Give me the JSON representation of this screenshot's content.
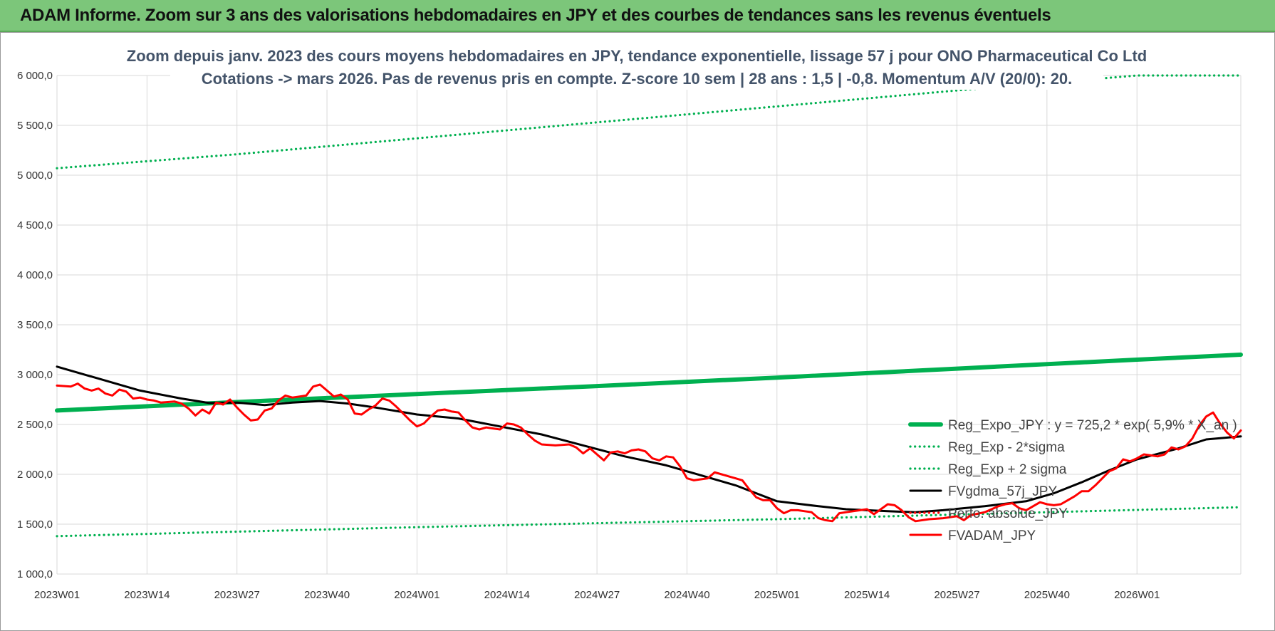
{
  "header": {
    "title": "ADAM Informe. Zoom sur 3 ans des valorisations hebdomadaires en JPY et des courbes de tendances sans les revenus éventuels"
  },
  "colors": {
    "header_bg": "#7cc67a",
    "trend": "#00b050",
    "price": "#ff0000",
    "gdma": "#000000",
    "grid": "#d9d9d9",
    "title": "#44546a"
  },
  "chart_data": {
    "type": "line",
    "title_line1": "Zoom depuis janv. 2023 des cours moyens hebdomadaires en JPY, tendance exponentielle, lissage 57 j pour ONO Pharmaceutical Co Ltd",
    "title_line2": "Cotations -> mars 2026. Pas de revenus pris en compte. Z-score 10 sem | 28 ans : 1,5 | -0,8. Momentum A/V (20/0): 20.",
    "xlabel": "",
    "ylabel": "",
    "ylim": [
      1000,
      6000
    ],
    "y_ticks": [
      "1 000,0",
      "1 500,0",
      "2 000,0",
      "2 500,0",
      "3 000,0",
      "3 500,0",
      "4 000,0",
      "4 500,0",
      "5 000,0",
      "5 500,0",
      "6 000,0"
    ],
    "x_ticks": [
      "2023W01",
      "2023W14",
      "2023W27",
      "2023W40",
      "2024W01",
      "2024W14",
      "2024W27",
      "2024W40",
      "2025W01",
      "2025W14",
      "2025W27",
      "2025W40",
      "2026W01"
    ],
    "x_tick_weeks": [
      0,
      13,
      26,
      39,
      52,
      65,
      78,
      91,
      104,
      117,
      130,
      143,
      156
    ],
    "x_range_weeks": [
      0,
      171
    ],
    "legend_position": "bottom-right",
    "series": [
      {
        "name": "Reg_Expo_JPY : y = 725,2 * exp( 5,9% * X_an )",
        "style": "thick",
        "color": "#00b050",
        "points": [
          [
            0,
            2640
          ],
          [
            26,
            2725
          ],
          [
            52,
            2805
          ],
          [
            78,
            2885
          ],
          [
            104,
            2970
          ],
          [
            130,
            3060
          ],
          [
            156,
            3150
          ],
          [
            171,
            3200
          ]
        ]
      },
      {
        "name": "Reg_Exp - 2*sigma",
        "style": "dotted",
        "color": "#00b050",
        "points": [
          [
            0,
            1380
          ],
          [
            52,
            1470
          ],
          [
            104,
            1550
          ],
          [
            171,
            1670
          ]
        ]
      },
      {
        "name": "Reg_Exp + 2 sigma",
        "style": "dotted",
        "color": "#00b050",
        "points": [
          [
            0,
            5070
          ],
          [
            26,
            5210
          ],
          [
            52,
            5370
          ],
          [
            78,
            5530
          ],
          [
            104,
            5690
          ],
          [
            130,
            5850
          ],
          [
            156,
            6000
          ],
          [
            171,
            6000
          ]
        ]
      },
      {
        "name": "FVgdma_57j_JPY",
        "style": "solid",
        "color": "#000000",
        "points": [
          [
            0,
            3080
          ],
          [
            6,
            2960
          ],
          [
            12,
            2840
          ],
          [
            18,
            2760
          ],
          [
            22,
            2715
          ],
          [
            26,
            2720
          ],
          [
            30,
            2695
          ],
          [
            34,
            2720
          ],
          [
            38,
            2735
          ],
          [
            42,
            2710
          ],
          [
            46,
            2670
          ],
          [
            52,
            2600
          ],
          [
            58,
            2560
          ],
          [
            64,
            2480
          ],
          [
            70,
            2400
          ],
          [
            76,
            2290
          ],
          [
            82,
            2180
          ],
          [
            88,
            2090
          ],
          [
            92,
            2010
          ],
          [
            98,
            1890
          ],
          [
            104,
            1730
          ],
          [
            110,
            1680
          ],
          [
            114,
            1650
          ],
          [
            120,
            1630
          ],
          [
            124,
            1620
          ],
          [
            128,
            1640
          ],
          [
            134,
            1680
          ],
          [
            140,
            1730
          ],
          [
            144,
            1810
          ],
          [
            148,
            1920
          ],
          [
            152,
            2040
          ],
          [
            156,
            2150
          ],
          [
            162,
            2260
          ],
          [
            166,
            2350
          ],
          [
            171,
            2380
          ]
        ]
      },
      {
        "name": "Perfo. absolue_JPY",
        "style": "dotted",
        "color": "#ff0000",
        "points": []
      },
      {
        "name": "FVADAM_JPY",
        "style": "solid",
        "color": "#ff0000",
        "points": [
          [
            0,
            2890
          ],
          [
            2,
            2880
          ],
          [
            3,
            2910
          ],
          [
            4,
            2860
          ],
          [
            5,
            2840
          ],
          [
            6,
            2860
          ],
          [
            7,
            2810
          ],
          [
            8,
            2790
          ],
          [
            9,
            2850
          ],
          [
            10,
            2830
          ],
          [
            11,
            2760
          ],
          [
            12,
            2770
          ],
          [
            13,
            2750
          ],
          [
            14,
            2740
          ],
          [
            15,
            2720
          ],
          [
            17,
            2730
          ],
          [
            18,
            2710
          ],
          [
            19,
            2660
          ],
          [
            20,
            2590
          ],
          [
            21,
            2650
          ],
          [
            22,
            2610
          ],
          [
            23,
            2720
          ],
          [
            24,
            2700
          ],
          [
            25,
            2750
          ],
          [
            26,
            2670
          ],
          [
            27,
            2600
          ],
          [
            28,
            2540
          ],
          [
            29,
            2550
          ],
          [
            30,
            2640
          ],
          [
            31,
            2660
          ],
          [
            32,
            2740
          ],
          [
            33,
            2790
          ],
          [
            34,
            2770
          ],
          [
            35,
            2780
          ],
          [
            36,
            2790
          ],
          [
            37,
            2880
          ],
          [
            38,
            2900
          ],
          [
            39,
            2840
          ],
          [
            40,
            2780
          ],
          [
            41,
            2800
          ],
          [
            42,
            2750
          ],
          [
            43,
            2610
          ],
          [
            44,
            2600
          ],
          [
            45,
            2650
          ],
          [
            46,
            2690
          ],
          [
            47,
            2760
          ],
          [
            48,
            2740
          ],
          [
            49,
            2680
          ],
          [
            50,
            2610
          ],
          [
            51,
            2540
          ],
          [
            52,
            2480
          ],
          [
            53,
            2510
          ],
          [
            54,
            2580
          ],
          [
            55,
            2640
          ],
          [
            56,
            2650
          ],
          [
            57,
            2630
          ],
          [
            58,
            2620
          ],
          [
            59,
            2540
          ],
          [
            60,
            2470
          ],
          [
            61,
            2450
          ],
          [
            62,
            2470
          ],
          [
            63,
            2460
          ],
          [
            64,
            2450
          ],
          [
            65,
            2510
          ],
          [
            66,
            2500
          ],
          [
            67,
            2470
          ],
          [
            68,
            2400
          ],
          [
            69,
            2340
          ],
          [
            70,
            2300
          ],
          [
            72,
            2290
          ],
          [
            74,
            2300
          ],
          [
            75,
            2270
          ],
          [
            76,
            2210
          ],
          [
            77,
            2260
          ],
          [
            78,
            2200
          ],
          [
            79,
            2140
          ],
          [
            80,
            2220
          ],
          [
            81,
            2230
          ],
          [
            82,
            2210
          ],
          [
            83,
            2240
          ],
          [
            84,
            2250
          ],
          [
            85,
            2230
          ],
          [
            86,
            2160
          ],
          [
            87,
            2140
          ],
          [
            88,
            2180
          ],
          [
            89,
            2170
          ],
          [
            90,
            2080
          ],
          [
            91,
            1960
          ],
          [
            92,
            1940
          ],
          [
            93,
            1950
          ],
          [
            94,
            1960
          ],
          [
            95,
            2020
          ],
          [
            96,
            2000
          ],
          [
            97,
            1980
          ],
          [
            98,
            1960
          ],
          [
            99,
            1940
          ],
          [
            100,
            1850
          ],
          [
            101,
            1770
          ],
          [
            102,
            1740
          ],
          [
            103,
            1740
          ],
          [
            104,
            1660
          ],
          [
            105,
            1610
          ],
          [
            106,
            1640
          ],
          [
            107,
            1640
          ],
          [
            108,
            1630
          ],
          [
            109,
            1620
          ],
          [
            110,
            1560
          ],
          [
            111,
            1540
          ],
          [
            112,
            1530
          ],
          [
            113,
            1610
          ],
          [
            114,
            1620
          ],
          [
            116,
            1640
          ],
          [
            117,
            1650
          ],
          [
            118,
            1600
          ],
          [
            119,
            1650
          ],
          [
            120,
            1700
          ],
          [
            121,
            1690
          ],
          [
            122,
            1640
          ],
          [
            123,
            1570
          ],
          [
            124,
            1530
          ],
          [
            126,
            1550
          ],
          [
            128,
            1560
          ],
          [
            130,
            1580
          ],
          [
            131,
            1540
          ],
          [
            132,
            1590
          ],
          [
            134,
            1620
          ],
          [
            135,
            1650
          ],
          [
            136,
            1680
          ],
          [
            137,
            1700
          ],
          [
            138,
            1710
          ],
          [
            139,
            1660
          ],
          [
            140,
            1640
          ],
          [
            141,
            1680
          ],
          [
            142,
            1720
          ],
          [
            143,
            1700
          ],
          [
            144,
            1690
          ],
          [
            145,
            1700
          ],
          [
            146,
            1740
          ],
          [
            147,
            1780
          ],
          [
            148,
            1830
          ],
          [
            149,
            1830
          ],
          [
            150,
            1890
          ],
          [
            151,
            1960
          ],
          [
            152,
            2030
          ],
          [
            153,
            2060
          ],
          [
            154,
            2150
          ],
          [
            155,
            2130
          ],
          [
            156,
            2160
          ],
          [
            157,
            2200
          ],
          [
            158,
            2190
          ],
          [
            159,
            2180
          ],
          [
            160,
            2200
          ],
          [
            161,
            2270
          ],
          [
            162,
            2250
          ],
          [
            163,
            2280
          ],
          [
            164,
            2360
          ],
          [
            165,
            2490
          ],
          [
            166,
            2580
          ],
          [
            167,
            2620
          ],
          [
            168,
            2510
          ],
          [
            169,
            2420
          ],
          [
            170,
            2360
          ],
          [
            171,
            2440
          ]
        ]
      }
    ]
  }
}
